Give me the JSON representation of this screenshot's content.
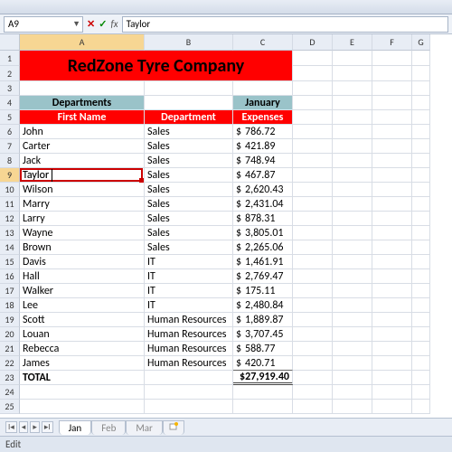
{
  "namebox": {
    "ref": "A9"
  },
  "formula_bar": {
    "value": "Taylor"
  },
  "columns": [
    {
      "letter": "A",
      "width": 138,
      "selected": true
    },
    {
      "letter": "B",
      "width": 98,
      "selected": false
    },
    {
      "letter": "C",
      "width": 66,
      "selected": false
    },
    {
      "letter": "D",
      "width": 44,
      "selected": false
    },
    {
      "letter": "E",
      "width": 44,
      "selected": false
    },
    {
      "letter": "F",
      "width": 44,
      "selected": false
    },
    {
      "letter": "G",
      "width": 20,
      "selected": false
    }
  ],
  "row_heights": {
    "default": 16,
    "title_row1": 17,
    "title_row2": 17
  },
  "title_banner": {
    "text": "RedZone Tyre Company",
    "bg": "#ff0000",
    "fg": "#000000",
    "span_cols": 3,
    "span_rows": 2,
    "fontsize": 20
  },
  "section_headers": {
    "departments": {
      "text": "Departments",
      "bg": "#9ac3c9",
      "fg": "#000000"
    },
    "month": {
      "text": "January",
      "bg": "#9ac3c9",
      "fg": "#000000"
    }
  },
  "column_titles": {
    "a": {
      "text": "First Name",
      "bg": "#ff0000",
      "fg": "#ffffff"
    },
    "b": {
      "text": "Department",
      "bg": "#ff0000",
      "fg": "#ffffff"
    },
    "c": {
      "text": "Expenses",
      "bg": "#ff0000",
      "fg": "#ffffff"
    }
  },
  "currency_symbol": "$",
  "data_rows": [
    {
      "first": "John",
      "dept": "Sales",
      "amt": "786.72"
    },
    {
      "first": "Carter",
      "dept": "Sales",
      "amt": "421.89"
    },
    {
      "first": "Jack",
      "dept": "Sales",
      "amt": "748.94"
    },
    {
      "first": "Taylor",
      "dept": "Sales",
      "amt": "467.87"
    },
    {
      "first": "Wilson",
      "dept": "Sales",
      "amt": "2,620.43"
    },
    {
      "first": "Marry",
      "dept": "Sales",
      "amt": "2,431.04"
    },
    {
      "first": "Larry",
      "dept": "Sales",
      "amt": "878.31"
    },
    {
      "first": "Wayne",
      "dept": "Sales",
      "amt": "3,805.01"
    },
    {
      "first": "Brown",
      "dept": "Sales",
      "amt": "2,265.06"
    },
    {
      "first": "Davis",
      "dept": "IT",
      "amt": "1,461.91"
    },
    {
      "first": "Hall",
      "dept": "IT",
      "amt": "2,769.47"
    },
    {
      "first": "Walker",
      "dept": "IT",
      "amt": "175.11"
    },
    {
      "first": "Lee",
      "dept": "IT",
      "amt": "2,480.84"
    },
    {
      "first": "Scott",
      "dept": "Human Resources",
      "amt": "1,889.87"
    },
    {
      "first": "Louan",
      "dept": "Human Resources",
      "amt": "3,707.45"
    },
    {
      "first": "Rebecca",
      "dept": "Human Resources",
      "amt": "588.77"
    },
    {
      "first": "James",
      "dept": "Human Resources",
      "amt": "420.71"
    }
  ],
  "total_row": {
    "label": "TOTAL",
    "value": "$27,919.40"
  },
  "selected": {
    "row": 9,
    "col": 0
  },
  "sheet_tabs": {
    "items": [
      "Jan",
      "Feb",
      "Mar"
    ],
    "active_index": 0
  },
  "status_bar": {
    "mode": "Edit"
  },
  "colors": {
    "grid": "#d8dde5",
    "header_bg": "#e8edf5",
    "sel_hdr": "#f7d693",
    "selection_border": "#cc0000"
  }
}
